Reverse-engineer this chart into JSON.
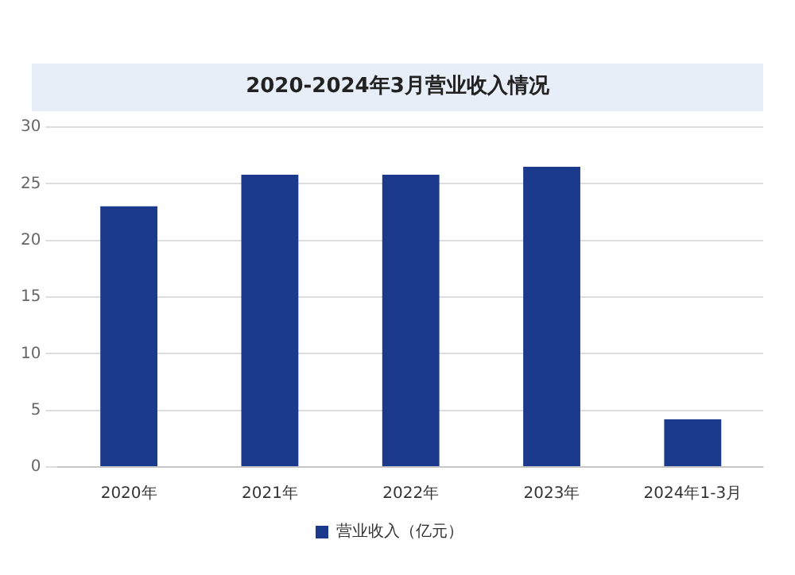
{
  "chart_data": {
    "type": "bar",
    "title": "2020-2024年3月营业收入情况",
    "categories": [
      "2020年",
      "2021年",
      "2022年",
      "2023年",
      "2024年1-3月"
    ],
    "series": [
      {
        "name": "营业收入（亿元）",
        "color": "#1c3a8c",
        "values": [
          23,
          25.8,
          25.8,
          26.5,
          4.2
        ]
      }
    ],
    "ylim": [
      0,
      30
    ],
    "yticks": [
      0,
      5,
      10,
      15,
      20,
      25,
      30
    ],
    "grid": "y",
    "legend": "bottom"
  }
}
